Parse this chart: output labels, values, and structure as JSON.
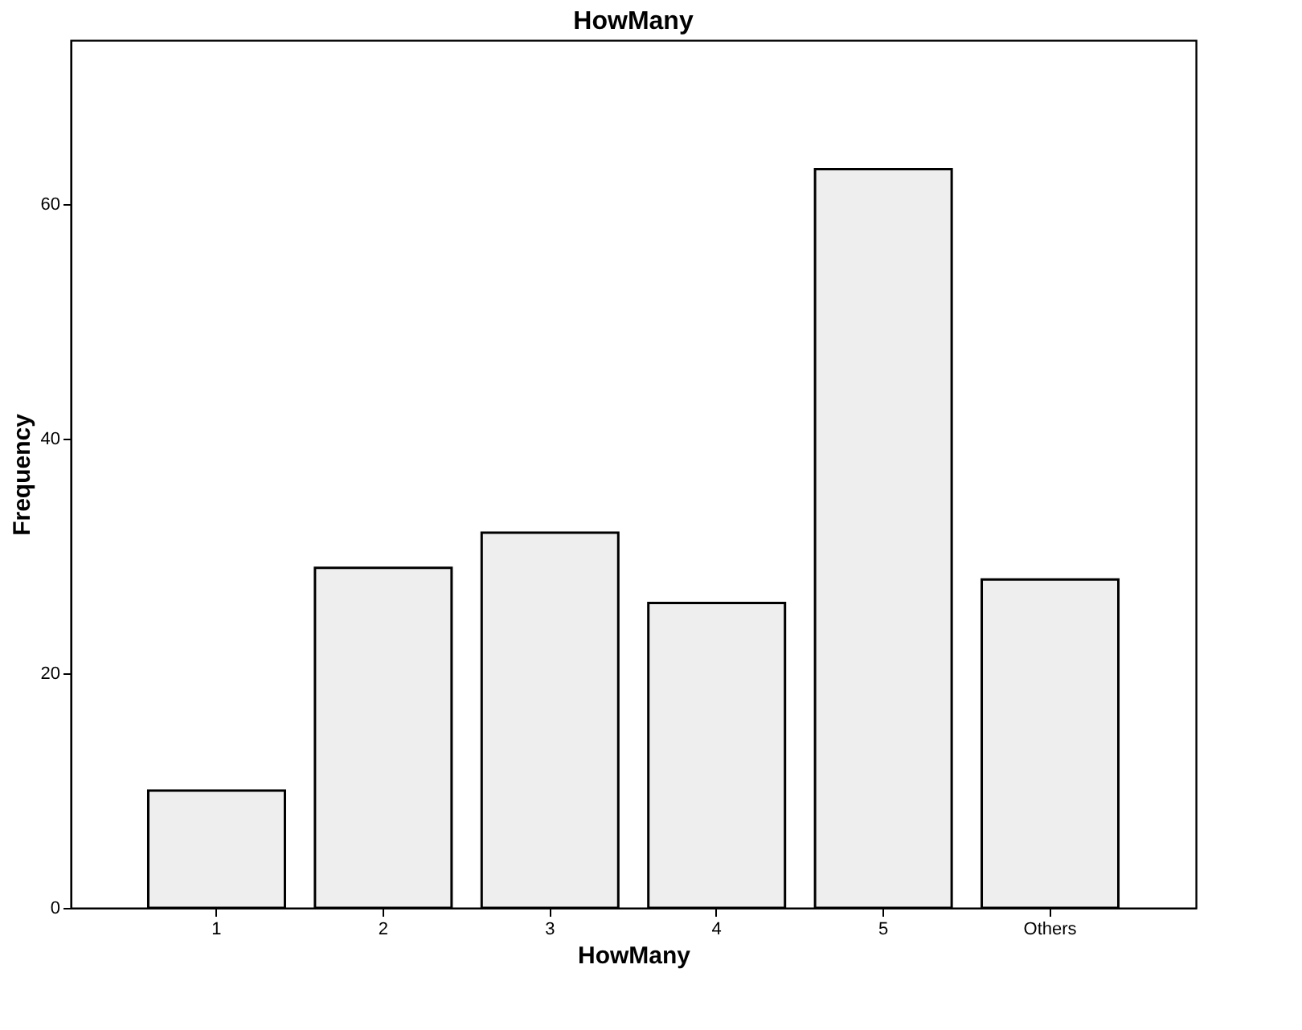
{
  "chart_data": {
    "type": "bar",
    "title": "HowMany",
    "xlabel": "HowMany",
    "ylabel": "Frequency",
    "categories": [
      "1",
      "2",
      "3",
      "4",
      "5",
      "Others"
    ],
    "values": [
      10,
      29,
      32,
      26,
      63,
      28
    ],
    "color": "#eeeeee",
    "ylim": [
      0,
      74
    ],
    "yticks": [
      0,
      20,
      40,
      60
    ],
    "grid": false
  }
}
